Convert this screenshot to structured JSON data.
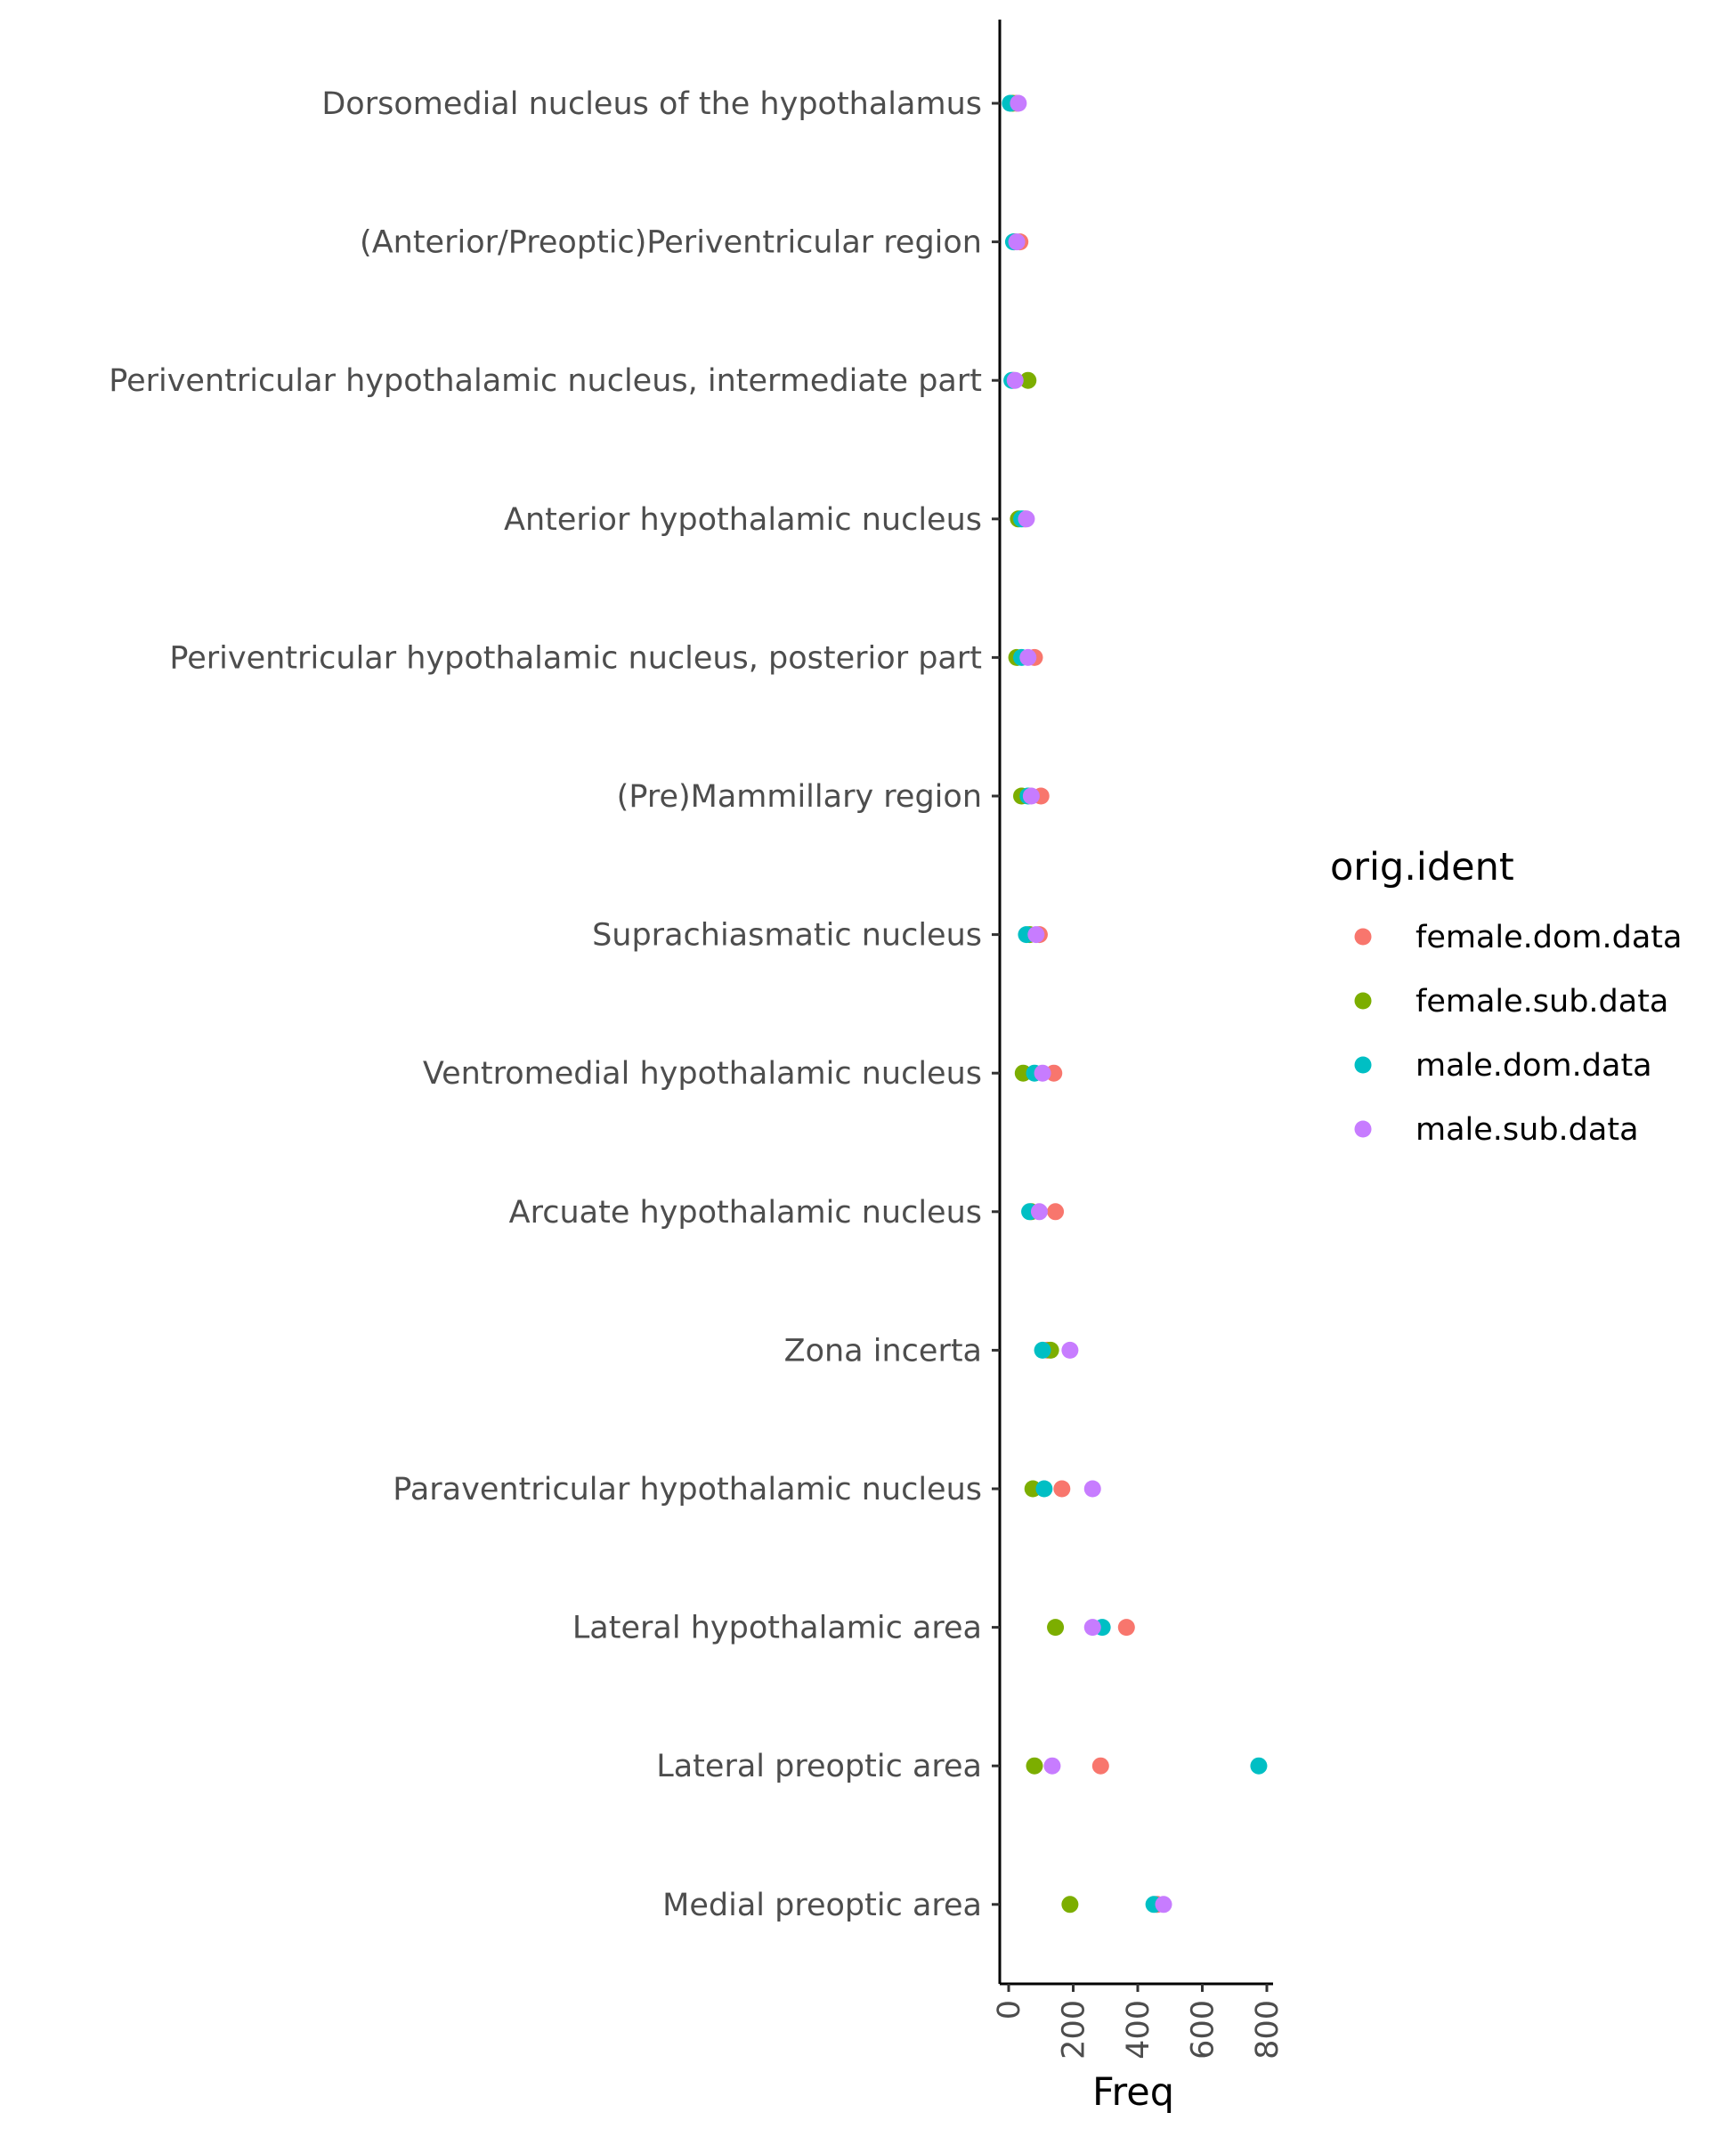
{
  "chart_data": {
    "type": "scatter",
    "xlabel": "Freq",
    "ylabel": "",
    "xlim": [
      -25,
      815
    ],
    "x_ticks": [
      0,
      200,
      400,
      600,
      800
    ],
    "x_tick_labels": [
      "0",
      "200",
      "400",
      "600",
      "800"
    ],
    "grid": false,
    "legend_position": "right",
    "legend_title": "orig.ident",
    "categories": [
      "Dorsomedial nucleus of the hypothalamus",
      "(Anterior/Preoptic)Periventricular region",
      "Periventricular hypothalamic nucleus, intermediate part",
      "Anterior hypothalamic nucleus",
      "Periventricular hypothalamic nucleus, posterior part",
      "(Pre)Mammillary region",
      "Suprachiasmatic nucleus",
      "Ventromedial hypothalamic nucleus",
      "Arcuate hypothalamic nucleus",
      "Zona incerta",
      "Paraventricular hypothalamic nucleus",
      "Lateral hypothalamic area",
      "Lateral preoptic area",
      "Medial preoptic area"
    ],
    "series": [
      {
        "name": "female.dom.data",
        "color": "#F8766D",
        "values": [
          25,
          35,
          15,
          50,
          80,
          100,
          95,
          140,
          145,
          120,
          165,
          365,
          285,
          460
        ]
      },
      {
        "name": "female.sub.data",
        "color": "#7CAE00",
        "values": [
          12,
          18,
          60,
          30,
          25,
          40,
          65,
          45,
          70,
          130,
          75,
          145,
          80,
          190
        ]
      },
      {
        "name": "male.dom.data",
        "color": "#00BFC4",
        "values": [
          5,
          15,
          10,
          40,
          40,
          60,
          55,
          80,
          65,
          105,
          110,
          290,
          775,
          450
        ]
      },
      {
        "name": "male.sub.data",
        "color": "#C77CFF",
        "values": [
          30,
          25,
          20,
          55,
          60,
          70,
          85,
          105,
          95,
          190,
          260,
          260,
          135,
          480
        ]
      }
    ]
  }
}
